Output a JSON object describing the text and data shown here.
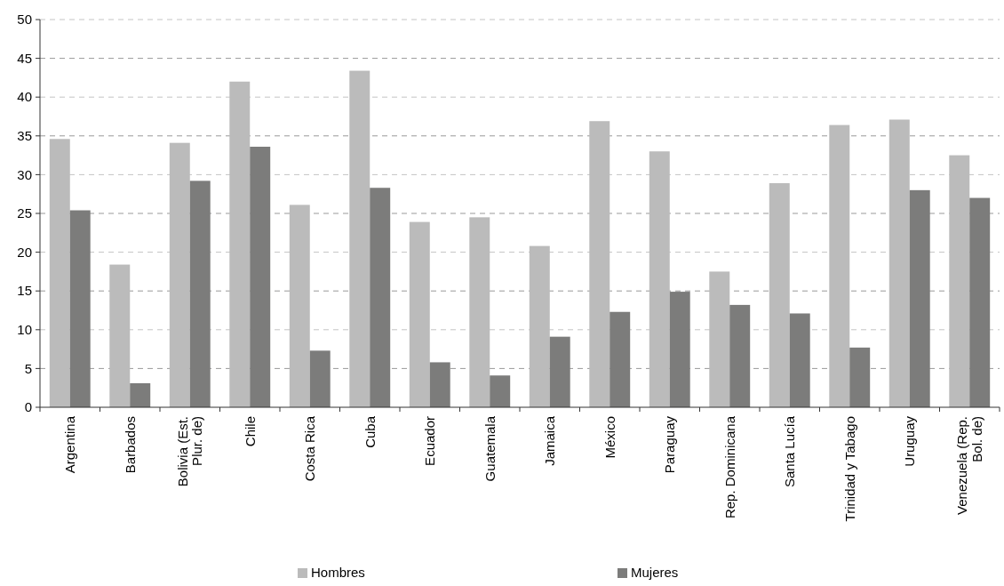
{
  "chart_data": {
    "type": "bar",
    "categories": [
      "Argentina",
      "Barbados",
      "Bolivia (Est. Plur. de)",
      "Chile",
      "Costa Rica",
      "Cuba",
      "Ecuador",
      "Guatemala",
      "Jamaica",
      "México",
      "Paraguay",
      "Rep. Dominicana",
      "Santa Lucía",
      "Trinidad y Tabago",
      "Uruguay",
      "Venezuela (Rep. Bol. de)"
    ],
    "series": [
      {
        "name": "Hombres",
        "color": "#bbbbbb",
        "values": [
          34.6,
          18.4,
          34.1,
          42.0,
          26.1,
          43.4,
          23.9,
          24.5,
          20.8,
          36.9,
          33.0,
          17.5,
          28.9,
          36.4,
          37.1,
          32.5
        ]
      },
      {
        "name": "Mujeres",
        "color": "#7c7c7b",
        "values": [
          25.4,
          3.1,
          29.2,
          33.6,
          7.3,
          28.3,
          5.8,
          4.1,
          9.1,
          12.3,
          14.9,
          13.2,
          12.1,
          7.7,
          28.0,
          27.0
        ]
      }
    ],
    "ylim": [
      0,
      50
    ],
    "yticks": [
      0,
      5,
      10,
      15,
      20,
      25,
      30,
      35,
      40,
      45,
      50
    ],
    "grid": "y",
    "legend": "bottom"
  }
}
